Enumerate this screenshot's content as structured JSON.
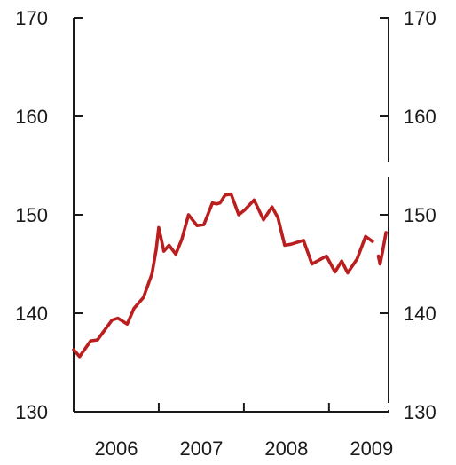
{
  "chart_data": {
    "type": "line",
    "title": "",
    "xlabel": "",
    "ylabel": "",
    "ylim": [
      130,
      170
    ],
    "xlim": [
      2006.0,
      2009.7
    ],
    "y_ticks": [
      130,
      140,
      150,
      160,
      170
    ],
    "y_tick_labels_left": [
      "130",
      "140",
      "150",
      "160",
      "170"
    ],
    "y_tick_labels_right": [
      "130",
      "140",
      "150",
      "160",
      "170"
    ],
    "x_ticks": [
      2006.5,
      2007.5,
      2008.5,
      2009.5
    ],
    "x_tick_labels": [
      "2006",
      "2007",
      "2008",
      "2009"
    ],
    "grid": false,
    "legend": "none",
    "colors": {
      "series": "#bb1e1e",
      "axis": "#1a1a1a"
    },
    "series": [
      {
        "color": "#bb1e1e",
        "x": [
          2006.0,
          2006.07,
          2006.2,
          2006.28,
          2006.45,
          2006.52,
          2006.63,
          2006.71,
          2006.82,
          2006.92,
          2006.97,
          2007.0,
          2007.06,
          2007.12,
          2007.2,
          2007.27,
          2007.35,
          2007.45,
          2007.53,
          2007.63,
          2007.68,
          2007.72,
          2007.78,
          2007.85,
          2007.94,
          2008.01,
          2008.12,
          2008.23,
          2008.33,
          2008.4,
          2008.48,
          2008.55,
          2008.7,
          2008.8,
          2008.97,
          2009.07,
          2009.15,
          2009.22,
          2009.33,
          2009.43,
          2009.51
        ],
        "y": [
          136.3,
          135.6,
          137.2,
          137.3,
          139.3,
          139.5,
          138.9,
          140.5,
          141.6,
          144.0,
          146.5,
          148.7,
          146.3,
          146.9,
          146.0,
          147.5,
          150.0,
          148.9,
          149.0,
          151.2,
          151.1,
          151.2,
          152.0,
          152.1,
          150.0,
          150.5,
          151.5,
          149.5,
          150.8,
          149.7,
          146.9,
          147.0,
          147.4,
          145.0,
          145.8,
          144.2,
          145.3,
          144.1,
          145.5,
          147.8,
          147.3
        ]
      },
      {
        "color": "#bb1e1e",
        "x": [
          2009.58,
          2009.6,
          2009.63,
          2009.67
        ],
        "y": [
          145.8,
          145.0,
          146.3,
          148.2
        ]
      }
    ]
  }
}
